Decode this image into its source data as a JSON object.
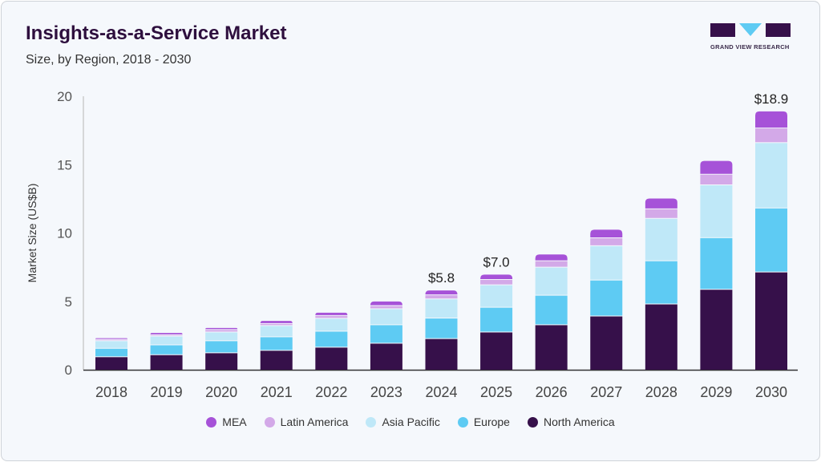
{
  "header": {
    "title": "Insights-as-a-Service Market",
    "subtitle": "Size, by Region, 2018 - 2030"
  },
  "logo": {
    "text": "GRAND VIEW RESEARCH"
  },
  "chart_data": {
    "type": "bar",
    "stacked": true,
    "title": "Insights-as-a-Service Market",
    "subtitle": "Size, by Region, 2018 - 2030",
    "ylabel": "Market Size (US$B)",
    "xlabel": "",
    "ylim": [
      0,
      20
    ],
    "yticks": [
      0,
      5,
      10,
      15,
      20
    ],
    "grid": false,
    "legend_position": "bottom",
    "categories": [
      "2018",
      "2019",
      "2020",
      "2021",
      "2022",
      "2023",
      "2024",
      "2025",
      "2026",
      "2027",
      "2028",
      "2029",
      "2030"
    ],
    "series": [
      {
        "name": "North America",
        "color": "#36104a",
        "values": [
          0.92,
          1.07,
          1.21,
          1.39,
          1.62,
          1.91,
          2.25,
          2.73,
          3.26,
          3.9,
          4.78,
          5.85,
          7.12
        ]
      },
      {
        "name": "Europe",
        "color": "#5ecbf3",
        "values": [
          0.62,
          0.72,
          0.88,
          0.99,
          1.17,
          1.35,
          1.5,
          1.81,
          2.16,
          2.63,
          3.16,
          3.78,
          4.68
        ]
      },
      {
        "name": "Asia Pacific",
        "color": "#bfe8f8",
        "values": [
          0.55,
          0.64,
          0.64,
          0.82,
          0.94,
          1.17,
          1.4,
          1.64,
          2.05,
          2.51,
          3.1,
          3.86,
          4.78
        ]
      },
      {
        "name": "Latin America",
        "color": "#d3a9e8",
        "values": [
          0.1,
          0.1,
          0.18,
          0.15,
          0.21,
          0.23,
          0.3,
          0.39,
          0.47,
          0.58,
          0.7,
          0.78,
          1.07
        ]
      },
      {
        "name": "MEA",
        "color": "#a652d8",
        "values": [
          0.12,
          0.16,
          0.15,
          0.22,
          0.23,
          0.33,
          0.35,
          0.39,
          0.49,
          0.62,
          0.78,
          1.0,
          1.24
        ]
      }
    ],
    "data_labels": [
      {
        "category": "2024",
        "text": "$5.8"
      },
      {
        "category": "2025",
        "text": "$7.0"
      },
      {
        "category": "2030",
        "text": "$18.9"
      }
    ],
    "legend_order": [
      "MEA",
      "Latin America",
      "Asia Pacific",
      "Europe",
      "North America"
    ]
  }
}
